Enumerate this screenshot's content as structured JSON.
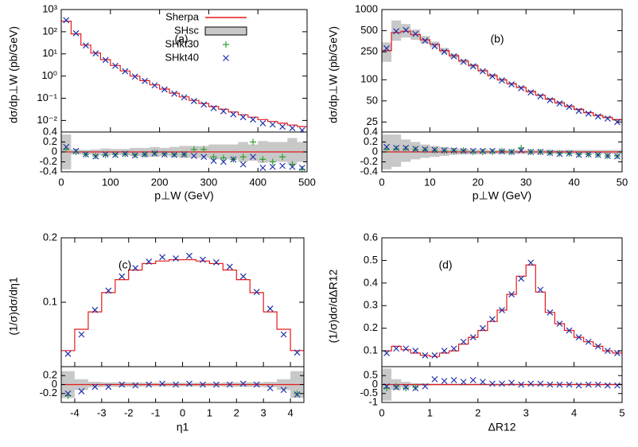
{
  "colors": {
    "sherpa": "#e41a1c",
    "shsc_fill": "#c8c8c8",
    "shkt30": "#2ca02c",
    "shkt40": "#1f2fa8"
  },
  "legend": {
    "sherpa": "Sherpa",
    "shsc": "SHsc",
    "shkt30": "SHkt30",
    "shkt40": "SHkt40"
  },
  "chart_data": [
    {
      "type": "line",
      "tag": "(a)",
      "log_y": true,
      "xlabel": "p⊥W (GeV)",
      "ylabel": "dσ/dp⊥W (pb/GeV)",
      "xlim": [
        0,
        500
      ],
      "ylim": [
        0.003,
        1000
      ],
      "x_ticks": [
        "0",
        "100",
        "200",
        "300",
        "400",
        "500"
      ],
      "y_ticks": [
        {
          "v": 1000,
          "t": "10³"
        },
        {
          "v": 100,
          "t": "10²"
        },
        {
          "v": 10,
          "t": "10¹"
        },
        {
          "v": 1,
          "t": "10⁰"
        },
        {
          "v": 0.1,
          "t": "10⁻¹"
        },
        {
          "v": 0.01,
          "t": "10⁻²"
        }
      ],
      "bins": [
        0,
        20,
        40,
        60,
        80,
        100,
        120,
        140,
        160,
        180,
        200,
        220,
        240,
        260,
        280,
        300,
        320,
        340,
        360,
        380,
        400,
        420,
        440,
        460,
        480,
        500
      ],
      "sherpa": [
        300,
        80,
        25,
        11,
        5.5,
        3.0,
        1.7,
        1.0,
        0.62,
        0.4,
        0.26,
        0.17,
        0.115,
        0.08,
        0.058,
        0.042,
        0.032,
        0.024,
        0.018,
        0.014,
        0.011,
        0.009,
        0.0075,
        0.0062,
        0.0053
      ],
      "shkt40_x": [
        10,
        30,
        50,
        70,
        90,
        110,
        130,
        150,
        170,
        190,
        210,
        230,
        250,
        270,
        290,
        310,
        330,
        350,
        370,
        390,
        410,
        430,
        450,
        470,
        490
      ],
      "shkt40_y": [
        330,
        85,
        24,
        10.5,
        5.3,
        2.9,
        1.65,
        0.95,
        0.6,
        0.38,
        0.25,
        0.16,
        0.11,
        0.075,
        0.052,
        0.036,
        0.026,
        0.019,
        0.014,
        0.011,
        0.0075,
        0.0065,
        0.0052,
        0.0045,
        0.0036
      ],
      "ratio": {
        "ylim": [
          -0.4,
          0.4
        ],
        "y_ticks": [
          "0.4",
          "0.2",
          "0",
          "-0.2",
          "-0.4"
        ],
        "band_low": [
          -0.35,
          -0.05,
          -0.05,
          -0.06,
          -0.08,
          -0.06,
          -0.07,
          -0.08,
          -0.1,
          -0.1,
          -0.08,
          -0.1,
          -0.12,
          -0.12,
          -0.12,
          -0.15,
          -0.15,
          -0.15,
          -0.2,
          -0.18,
          -0.22,
          -0.2,
          -0.2,
          -0.25,
          -0.2
        ],
        "band_high": [
          0.35,
          0.05,
          0.04,
          0.05,
          0.07,
          0.06,
          0.06,
          0.08,
          0.08,
          0.1,
          0.08,
          0.1,
          0.12,
          0.12,
          0.12,
          0.15,
          0.15,
          0.15,
          0.2,
          0.15,
          0.22,
          0.2,
          0.2,
          0.28,
          0.2
        ],
        "shkt30_x": [
          10,
          30,
          50,
          70,
          90,
          110,
          130,
          150,
          170,
          190,
          210,
          230,
          250,
          270,
          290,
          310,
          330,
          350,
          370,
          390,
          410,
          430,
          450,
          470,
          490
        ],
        "shkt30_y": [
          0.05,
          0.0,
          -0.05,
          -0.08,
          -0.06,
          -0.05,
          -0.04,
          -0.06,
          -0.05,
          -0.02,
          -0.04,
          -0.05,
          -0.05,
          0.05,
          0.05,
          -0.1,
          -0.12,
          -0.15,
          -0.1,
          0.2,
          -0.15,
          -0.2,
          -0.1,
          -0.25,
          -0.35
        ],
        "shkt40_x": [
          10,
          30,
          50,
          70,
          90,
          110,
          130,
          150,
          170,
          190,
          210,
          230,
          250,
          270,
          290,
          310,
          330,
          350,
          370,
          390,
          410,
          430,
          450,
          470,
          490
        ],
        "shkt40_y": [
          0.1,
          0.02,
          -0.05,
          -0.09,
          -0.05,
          -0.06,
          -0.04,
          -0.07,
          -0.05,
          -0.03,
          -0.05,
          -0.06,
          -0.05,
          -0.08,
          -0.1,
          -0.18,
          -0.2,
          -0.15,
          -0.25,
          -0.1,
          -0.32,
          -0.3,
          -0.28,
          -0.3,
          -0.32
        ]
      }
    },
    {
      "type": "line",
      "tag": "(b)",
      "log_y": true,
      "xlabel": "p⊥W (GeV)",
      "ylabel": "dσ/dp⊥W (pb/GeV)",
      "xlim": [
        0,
        50
      ],
      "ylim": [
        18,
        1000
      ],
      "x_ticks": [
        "0",
        "10",
        "20",
        "30",
        "40",
        "50"
      ],
      "y_ticks": [
        {
          "v": 1000,
          "t": "1000"
        },
        {
          "v": 500,
          "t": "500"
        },
        {
          "v": 250,
          "t": "250"
        },
        {
          "v": 100,
          "t": "100"
        },
        {
          "v": 50,
          "t": "50"
        },
        {
          "v": 25,
          "t": "25"
        }
      ],
      "bins": [
        0,
        2,
        4,
        6,
        8,
        10,
        12,
        14,
        16,
        18,
        20,
        22,
        24,
        26,
        28,
        30,
        32,
        34,
        36,
        38,
        40,
        42,
        44,
        46,
        48,
        50
      ],
      "sherpa": [
        260,
        470,
        490,
        440,
        370,
        320,
        260,
        220,
        185,
        160,
        135,
        115,
        100,
        88,
        78,
        68,
        60,
        53,
        47,
        42,
        38,
        34,
        31,
        29,
        27
      ],
      "band_low": [
        180,
        360,
        400,
        370,
        330,
        290,
        240,
        205,
        175,
        150,
        128,
        110,
        96,
        84,
        75,
        65,
        58,
        51,
        45,
        40,
        36,
        33,
        30,
        28,
        26
      ],
      "band_high": [
        340,
        700,
        620,
        520,
        420,
        350,
        285,
        235,
        195,
        168,
        140,
        120,
        104,
        91,
        80,
        70,
        62,
        55,
        49,
        43,
        39,
        35,
        32,
        30,
        28
      ],
      "shkt40_x": [
        1,
        3,
        5,
        7,
        9,
        11,
        13,
        15,
        17,
        19,
        21,
        23,
        25,
        27,
        29,
        31,
        33,
        35,
        37,
        39,
        41,
        43,
        45,
        47,
        49
      ],
      "shkt40_y": [
        280,
        490,
        510,
        450,
        360,
        300,
        250,
        215,
        180,
        155,
        132,
        112,
        98,
        86,
        76,
        66,
        58,
        51,
        46,
        41,
        36,
        33,
        30,
        28,
        25
      ],
      "ratio": {
        "ylim": [
          -0.4,
          0.4
        ],
        "y_ticks": [
          "0.4",
          "0.2",
          "0",
          "-0.2",
          "-0.4"
        ],
        "band_low": [
          -0.35,
          -0.3,
          -0.2,
          -0.15,
          -0.12,
          -0.1,
          -0.08,
          -0.06,
          -0.05,
          -0.05,
          -0.05,
          -0.04,
          -0.04,
          -0.04,
          -0.04,
          -0.04,
          -0.04,
          -0.04,
          -0.04,
          -0.04,
          -0.04,
          -0.04,
          -0.04,
          -0.04,
          -0.04
        ],
        "band_high": [
          0.35,
          0.35,
          0.25,
          0.2,
          0.15,
          0.12,
          0.1,
          0.08,
          0.06,
          0.05,
          0.05,
          0.04,
          0.04,
          0.04,
          0.04,
          0.04,
          0.04,
          0.04,
          0.04,
          0.04,
          0.04,
          0.04,
          0.04,
          0.04,
          0.04
        ],
        "shkt30_x": [
          1,
          3,
          5,
          7,
          9,
          11,
          13,
          15,
          17,
          19,
          21,
          23,
          25,
          27,
          29,
          31,
          33,
          35,
          37,
          39,
          41,
          43,
          45,
          47,
          49
        ],
        "shkt30_y": [
          0.05,
          0.06,
          0.06,
          0.05,
          0.04,
          0.03,
          0.02,
          0.02,
          0.03,
          0.0,
          0.0,
          0.0,
          0.02,
          0.0,
          0.08,
          0.0,
          0.0,
          -0.02,
          -0.03,
          -0.03,
          -0.05,
          -0.05,
          -0.06,
          -0.08,
          -0.08
        ],
        "shkt40_x": [
          1,
          3,
          5,
          7,
          9,
          11,
          13,
          15,
          17,
          19,
          21,
          23,
          25,
          27,
          29,
          31,
          33,
          35,
          37,
          39,
          41,
          43,
          45,
          47,
          49
        ],
        "shkt40_y": [
          0.1,
          0.08,
          0.08,
          0.06,
          0.05,
          0.04,
          0.03,
          0.03,
          0.02,
          0.02,
          0.02,
          0.02,
          0.01,
          0.0,
          0.03,
          0.0,
          0.0,
          -0.02,
          -0.04,
          -0.03,
          -0.06,
          -0.05,
          -0.06,
          -0.08,
          -0.09
        ]
      }
    },
    {
      "type": "line",
      "tag": "(c)",
      "log_y": false,
      "xlabel": "η1",
      "ylabel": "(1/σ)dσ/dη1",
      "xlim": [
        -4.5,
        4.5
      ],
      "ylim": [
        0.0,
        0.2
      ],
      "x_ticks": [
        "-4",
        "-3",
        "-2",
        "-1",
        "0",
        "1",
        "2",
        "3",
        "4"
      ],
      "x_tick_vals": [
        -4,
        -3,
        -2,
        -1,
        0,
        1,
        2,
        3,
        4
      ],
      "y_ticks": [
        {
          "v": 0.2,
          "t": "0.2"
        },
        {
          "v": 0.1,
          "t": "0.1"
        }
      ],
      "bins": [
        -4.5,
        -4,
        -3.5,
        -3,
        -2.5,
        -2,
        -1.5,
        -1,
        -0.5,
        0,
        0.5,
        1,
        1.5,
        2,
        2.5,
        3,
        3.5,
        4,
        4.5
      ],
      "sherpa": [
        0.025,
        0.058,
        0.085,
        0.115,
        0.135,
        0.15,
        0.16,
        0.164,
        0.166,
        0.166,
        0.164,
        0.16,
        0.15,
        0.135,
        0.115,
        0.085,
        0.058,
        0.025
      ],
      "shkt40_x": [
        -4.25,
        -3.75,
        -3.25,
        -2.75,
        -2.25,
        -1.75,
        -1.25,
        -0.75,
        -0.25,
        0.25,
        0.75,
        1.25,
        1.75,
        2.25,
        2.75,
        3.25,
        3.75,
        4.25
      ],
      "shkt40_y": [
        0.02,
        0.05,
        0.088,
        0.118,
        0.14,
        0.153,
        0.163,
        0.17,
        0.168,
        0.172,
        0.166,
        0.162,
        0.155,
        0.14,
        0.116,
        0.09,
        0.05,
        0.022
      ],
      "ratio": {
        "ylim": [
          -0.4,
          0.4
        ],
        "y_ticks": [
          "0.2",
          "0",
          "-0.2"
        ],
        "band_low": [
          -0.3,
          -0.12,
          -0.06,
          -0.05,
          -0.05,
          -0.05,
          -0.04,
          -0.04,
          -0.04,
          -0.04,
          -0.04,
          -0.04,
          -0.05,
          -0.05,
          -0.05,
          -0.06,
          -0.12,
          -0.3
        ],
        "band_high": [
          0.3,
          0.12,
          0.06,
          0.05,
          0.05,
          0.05,
          0.04,
          0.04,
          0.04,
          0.04,
          0.04,
          0.04,
          0.05,
          0.05,
          0.05,
          0.06,
          0.12,
          0.3
        ],
        "shkt30_x": [
          -4.25,
          4.25
        ],
        "shkt30_y": [
          -0.25,
          -0.2
        ],
        "shkt40_x": [
          -4.25,
          -3.75,
          -3.25,
          -2.75,
          -2.25,
          -1.75,
          -1.25,
          -0.75,
          -0.25,
          0.25,
          0.75,
          1.25,
          1.75,
          2.25,
          2.75,
          3.25,
          3.75,
          4.25
        ],
        "shkt40_y": [
          -0.2,
          -0.15,
          -0.05,
          -0.05,
          0.0,
          -0.02,
          0.0,
          0.02,
          0.0,
          0.02,
          0.0,
          0.0,
          0.0,
          0.02,
          0.0,
          -0.08,
          -0.12,
          -0.22
        ]
      }
    },
    {
      "type": "line",
      "tag": "(d)",
      "log_y": false,
      "xlabel": "ΔR12",
      "ylabel": "(1/σ)dσ/dΔR12",
      "xlim": [
        0,
        5
      ],
      "ylim": [
        0.03,
        0.6
      ],
      "x_ticks": [
        "0",
        "1",
        "2",
        "3",
        "4",
        "5"
      ],
      "x_tick_vals": [
        0,
        1,
        2,
        3,
        4,
        5
      ],
      "y_ticks": [
        {
          "v": 0.6,
          "t": "0.6"
        },
        {
          "v": 0.5,
          "t": "0.5"
        },
        {
          "v": 0.4,
          "t": "0.4"
        },
        {
          "v": 0.3,
          "t": "0.3"
        },
        {
          "v": 0.2,
          "t": "0.2"
        },
        {
          "v": 0.1,
          "t": "0.1"
        }
      ],
      "bins": [
        0,
        0.2,
        0.4,
        0.6,
        0.8,
        1.0,
        1.2,
        1.4,
        1.6,
        1.8,
        2.0,
        2.2,
        2.4,
        2.6,
        2.8,
        3.0,
        3.2,
        3.4,
        3.6,
        3.8,
        4.0,
        4.2,
        4.4,
        4.6,
        4.8,
        5.0
      ],
      "sherpa": [
        0.1,
        0.12,
        0.105,
        0.09,
        0.08,
        0.075,
        0.09,
        0.1,
        0.13,
        0.16,
        0.19,
        0.23,
        0.28,
        0.35,
        0.43,
        0.48,
        0.36,
        0.27,
        0.22,
        0.19,
        0.16,
        0.14,
        0.12,
        0.1,
        0.09
      ],
      "shkt40_x": [
        0.1,
        0.3,
        0.5,
        0.7,
        0.9,
        1.1,
        1.3,
        1.5,
        1.7,
        1.9,
        2.1,
        2.3,
        2.5,
        2.7,
        2.9,
        3.1,
        3.3,
        3.5,
        3.7,
        3.9,
        4.1,
        4.3,
        4.5,
        4.7,
        4.9
      ],
      "shkt40_y": [
        0.09,
        0.11,
        0.11,
        0.1,
        0.08,
        0.08,
        0.1,
        0.11,
        0.14,
        0.16,
        0.2,
        0.24,
        0.28,
        0.35,
        0.42,
        0.49,
        0.37,
        0.27,
        0.22,
        0.19,
        0.16,
        0.14,
        0.12,
        0.1,
        0.09
      ],
      "ratio": {
        "ylim": [
          -1,
          1
        ],
        "y_ticks": [
          "0.5",
          "0",
          "-0.5",
          "-1"
        ],
        "band_low": [
          -0.9,
          -0.3,
          -0.15,
          -0.08,
          -0.06,
          -0.05,
          -0.05,
          -0.05,
          -0.05,
          -0.05,
          -0.05,
          -0.05,
          -0.05,
          -0.05,
          -0.05,
          -0.05,
          -0.05,
          -0.05,
          -0.05,
          -0.05,
          -0.05,
          -0.05,
          -0.05,
          -0.05,
          -0.05
        ],
        "band_high": [
          0.9,
          0.3,
          0.15,
          0.08,
          0.06,
          0.05,
          0.05,
          0.05,
          0.05,
          0.05,
          0.05,
          0.05,
          0.05,
          0.05,
          0.05,
          0.05,
          0.05,
          0.05,
          0.05,
          0.05,
          0.05,
          0.05,
          0.05,
          0.05,
          0.05
        ],
        "shkt30_x": [
          0.1,
          0.3,
          0.5,
          0.7
        ],
        "shkt30_y": [
          -0.2,
          -0.1,
          -0.2,
          -0.15
        ],
        "shkt40_x": [
          0.1,
          0.3,
          0.5,
          0.7,
          0.9,
          1.1,
          1.3,
          1.5,
          1.7,
          1.9,
          2.1,
          2.3,
          2.5,
          2.7,
          2.9,
          3.1,
          3.3,
          3.5,
          3.7,
          3.9,
          4.1,
          4.3,
          4.5,
          4.7,
          4.9
        ],
        "shkt40_y": [
          -0.1,
          -0.15,
          -0.15,
          -0.2,
          -0.1,
          0.3,
          0.2,
          0.25,
          0.15,
          0.25,
          0.15,
          0.05,
          0.05,
          0.1,
          0.0,
          0.05,
          0.05,
          0.0,
          0.0,
          0.0,
          -0.05,
          0.0,
          0.0,
          -0.05,
          -0.05
        ]
      }
    }
  ]
}
